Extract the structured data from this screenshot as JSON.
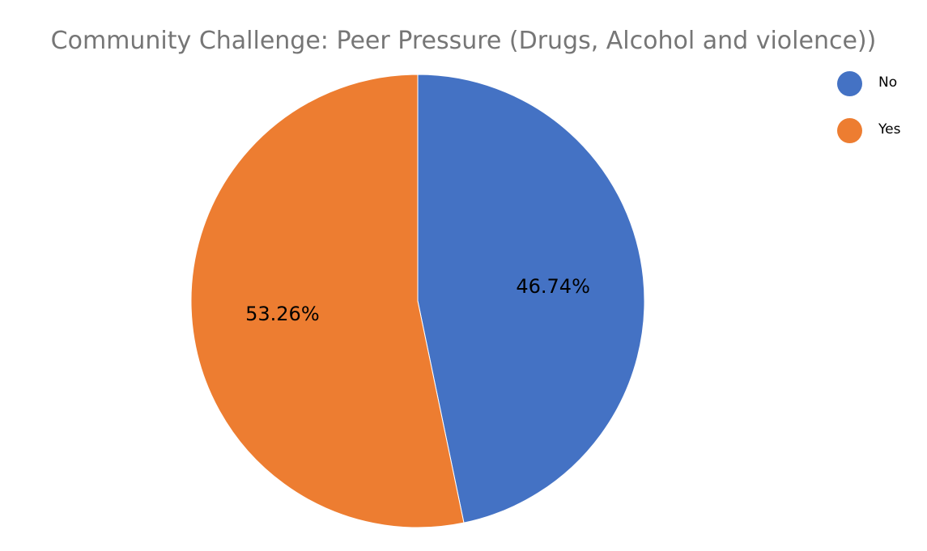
{
  "chart_data": {
    "type": "pie",
    "title": "Community Challenge: Peer Pressure (Drugs, Alcohol and violence))",
    "categories": [
      "No",
      "Yes"
    ],
    "values": [
      46.74,
      53.26
    ],
    "labels": [
      "46.74%",
      "53.26%"
    ],
    "colors": [
      "#4472C4",
      "#ED7D31"
    ],
    "start_angle": "12 o'clock",
    "direction": "clockwise",
    "legend": {
      "placement": "top-right",
      "entries": [
        "No",
        "Yes"
      ]
    }
  }
}
